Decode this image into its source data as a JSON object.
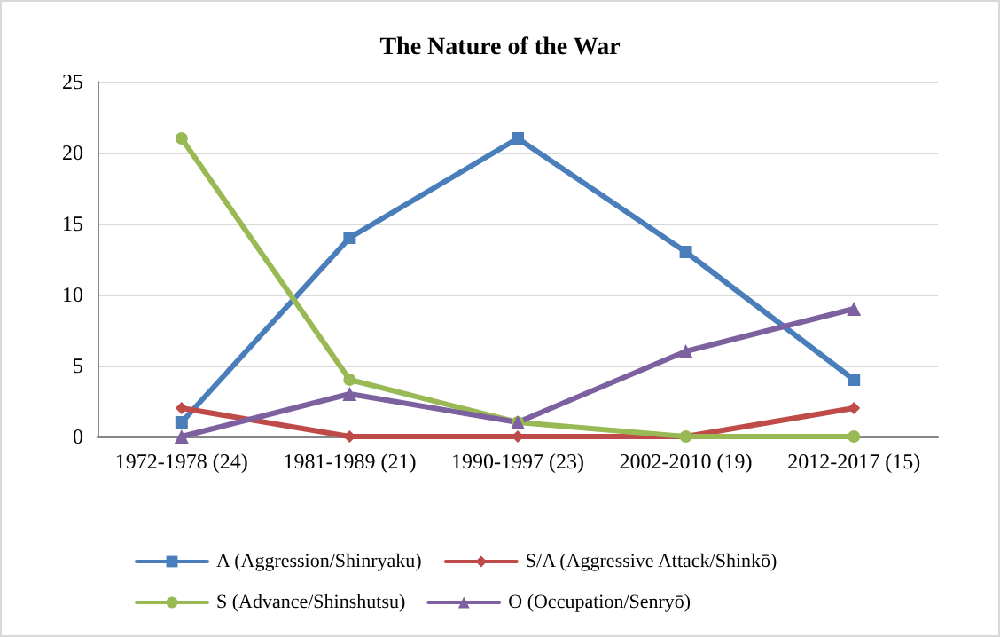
{
  "chart_data": {
    "type": "line",
    "title": "The Nature of the War",
    "categories": [
      "1972-1978 (24)",
      "1981-1989 (21)",
      "1990-1997 (23)",
      "2002-2010 (19)",
      "2012-2017 (15)"
    ],
    "series": [
      {
        "name": "A (Aggression/Shinryaku)",
        "color": "#4a7ebb",
        "marker": "square",
        "values": [
          1,
          14,
          21,
          13,
          4
        ]
      },
      {
        "name": "S/A (Aggressive Attack/Shinkō)",
        "color": "#be4b48",
        "marker": "diamond",
        "values": [
          2,
          0,
          0,
          0,
          2
        ]
      },
      {
        "name": "S (Advance/Shinshutsu)",
        "color": "#98b954",
        "marker": "circle",
        "values": [
          21,
          4,
          1,
          0,
          0
        ]
      },
      {
        "name": "O (Occupation/Senryō)",
        "color": "#7d60a0",
        "marker": "triangle",
        "values": [
          0,
          3,
          1,
          6,
          9
        ]
      }
    ],
    "ylim": [
      0,
      25
    ],
    "yticks": [
      0,
      5,
      10,
      15,
      20,
      25
    ],
    "grid": "y",
    "legend": "bottom",
    "line_style": "solid"
  }
}
